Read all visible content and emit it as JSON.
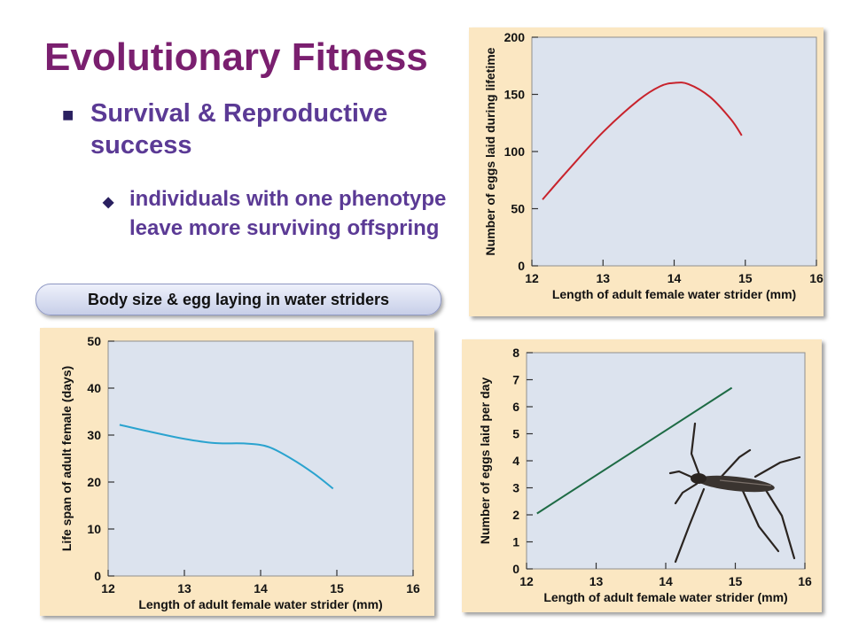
{
  "slide": {
    "title": "Evolutionary Fitness",
    "bullet": "Survival & Reproductive success",
    "sub_bullet": "individuals with one phenotype leave more surviving offspring",
    "caption": "Body size & egg laying in water striders"
  },
  "colors": {
    "title": "#7a1f6f",
    "bullet": "#5b3a95",
    "panel_bg": "#fbe7c2",
    "plot_bg": "#dce3ee",
    "curve_eggs_lifetime": "#c8232c",
    "curve_lifespan": "#2aa3cf",
    "curve_eggs_per_day": "#1e6b45"
  },
  "illustration": {
    "icon": "water-strider-icon"
  },
  "chart_data": [
    {
      "type": "line",
      "xlabel": "Length of adult female water strider (mm)",
      "ylabel": "Number of eggs laid during lifetime",
      "xlim": [
        12,
        16
      ],
      "ylim": [
        0,
        200
      ],
      "xticks": [
        "12",
        "13",
        "14",
        "15",
        "16"
      ],
      "yticks": [
        "0",
        "50",
        "100",
        "150",
        "200"
      ],
      "grid": false,
      "series": [
        {
          "x": [
            12.15,
            12.5,
            13.0,
            13.5,
            13.8,
            14.0,
            14.2,
            14.5,
            14.8,
            14.95
          ],
          "y": [
            58,
            83,
            117,
            145,
            157,
            160,
            159,
            148,
            128,
            114
          ]
        }
      ]
    },
    {
      "type": "line",
      "xlabel": "Length of adult female water strider (mm)",
      "ylabel": "Life span of adult female (days)",
      "xlim": [
        12,
        16
      ],
      "ylim": [
        0,
        50
      ],
      "xticks": [
        "12",
        "13",
        "14",
        "15",
        "16"
      ],
      "yticks": [
        "0",
        "10",
        "20",
        "30",
        "40",
        "50"
      ],
      "grid": false,
      "series": [
        {
          "x": [
            12.15,
            12.5,
            13.0,
            13.4,
            13.8,
            14.1,
            14.4,
            14.7,
            14.95
          ],
          "y": [
            32.2,
            30.9,
            29.2,
            28.3,
            28.2,
            27.5,
            25.0,
            21.8,
            18.6
          ]
        }
      ]
    },
    {
      "type": "line",
      "xlabel": "Length of adult female water strider (mm)",
      "ylabel": "Number of eggs laid per day",
      "xlim": [
        12,
        16
      ],
      "ylim": [
        0,
        8
      ],
      "xticks": [
        "12",
        "13",
        "14",
        "15",
        "16"
      ],
      "yticks": [
        "0",
        "1",
        "2",
        "3",
        "4",
        "5",
        "6",
        "7",
        "8"
      ],
      "grid": false,
      "series": [
        {
          "x": [
            12.15,
            14.95
          ],
          "y": [
            2.05,
            6.7
          ]
        }
      ]
    }
  ]
}
